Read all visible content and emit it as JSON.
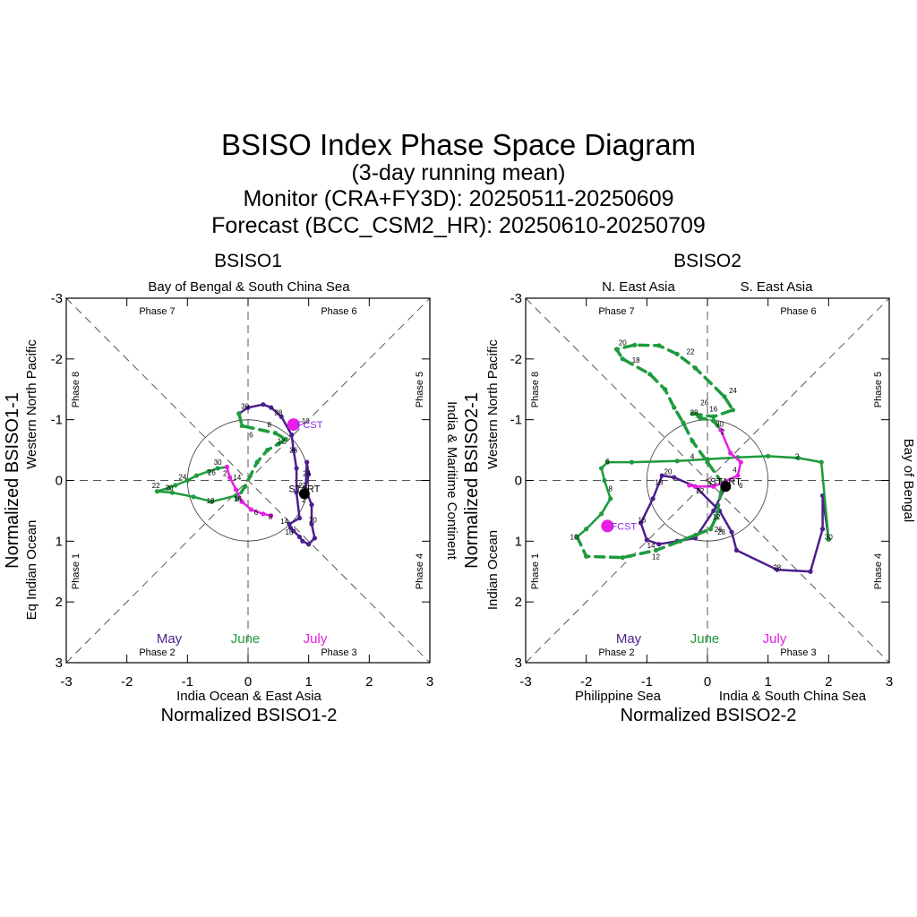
{
  "title": {
    "main": "BSISO Index Phase Space Diagram",
    "line2": "(3-day running mean)",
    "line3": "Monitor (CRA+FY3D): 20250511-20250609",
    "line4": "Forecast (BCC_CSM2_HR): 20250610-20250709"
  },
  "month_labels": [
    {
      "name": "May",
      "color": "#4b1f8c"
    },
    {
      "name": "June",
      "color": "#1e9b3c"
    },
    {
      "name": "July",
      "color": "#e61ee6"
    }
  ],
  "start_label": "START",
  "fcst_label": "FCST",
  "colors": {
    "may": "#4b1f8c",
    "june": "#1e9b3c",
    "july": "#e61ee6",
    "fcst_label": "#8a2be2"
  },
  "chart_data": [
    {
      "type": "scatter",
      "panel_title": "BSISO1",
      "xlabel": "Normalized BSISO1-2",
      "ylabel": "Normalized BSISO1-1",
      "xlim": [
        -3,
        3
      ],
      "ylim": [
        -3,
        3
      ],
      "y_inverted": true,
      "tick_labels": [
        "-3",
        "-2",
        "-1",
        "0",
        "1",
        "2",
        "3"
      ],
      "side_labels": {
        "top": [
          "Bay of Bengal & South China Sea"
        ],
        "bottom": [
          "India Ocean & East Asia"
        ],
        "left": [
          "Western North Pacific",
          "Eq Indian Ocean"
        ],
        "right": [
          "India & Maritime Continent"
        ]
      },
      "phases": [
        "Phase 1",
        "Phase 2",
        "Phase 3",
        "Phase 4",
        "Phase 5",
        "Phase 6",
        "Phase 7",
        "Phase 8"
      ],
      "series": [
        {
          "name": "May",
          "segments": [
            {
              "style": "solid",
              "points": [
                [
                  0.93,
                  0.22
                ],
                [
                  1.0,
                  -0.1
                ],
                [
                  0.97,
                  -0.3
                ],
                [
                  0.95,
                  0.15
                ],
                [
                  1.05,
                  0.4
                ],
                [
                  1.05,
                  0.72
                ],
                [
                  1.1,
                  0.95
                ],
                [
                  1.0,
                  1.05
                ],
                [
                  0.9,
                  1.0
                ],
                [
                  0.85,
                  0.93
                ],
                [
                  0.75,
                  0.83
                ],
                [
                  0.7,
                  0.78
                ],
                [
                  0.68,
                  0.72
                ],
                [
                  0.85,
                  0.62
                ],
                [
                  0.8,
                  0.2
                ],
                [
                  0.8,
                  -0.2
                ],
                [
                  0.75,
                  -0.5
                ],
                [
                  0.72,
                  -0.75
                ],
                [
                  0.55,
                  -1.05
                ],
                [
                  0.38,
                  -1.2
                ],
                [
                  0.25,
                  -1.25
                ],
                [
                  0.0,
                  -1.2
                ],
                [
                  -0.15,
                  -1.1
                ]
              ]
            }
          ]
        },
        {
          "name": "June",
          "segments": [
            {
              "style": "dashed",
              "points": [
                [
                  -0.15,
                  -1.1
                ],
                [
                  -0.1,
                  -0.9
                ],
                [
                  0.45,
                  -0.78
                ],
                [
                  0.62,
                  -0.68
                ],
                [
                  0.5,
                  -0.6
                ],
                [
                  0.32,
                  -0.5
                ],
                [
                  0.15,
                  -0.3
                ],
                [
                  -0.05,
                  0.1
                ],
                [
                  -0.18,
                  0.3
                ],
                [
                  -0.2,
                  0.25
                ]
              ]
            },
            {
              "style": "solid",
              "points": [
                [
                  -0.2,
                  0.25
                ],
                [
                  -0.6,
                  0.35
                ],
                [
                  -0.9,
                  0.27
                ],
                [
                  -1.25,
                  0.2
                ],
                [
                  -1.5,
                  0.18
                ],
                [
                  -1.3,
                  0.12
                ],
                [
                  -1.2,
                  0.08
                ],
                [
                  -1.0,
                  0.0
                ],
                [
                  -0.85,
                  -0.08
                ],
                [
                  -0.65,
                  -0.15
                ],
                [
                  -0.5,
                  -0.2
                ],
                [
                  -0.35,
                  -0.22
                ]
              ]
            }
          ]
        },
        {
          "name": "July",
          "segments": [
            {
              "style": "solid",
              "points": [
                [
                  -0.35,
                  -0.22
                ],
                [
                  -0.3,
                  -0.05
                ],
                [
                  -0.2,
                  0.15
                ],
                [
                  -0.1,
                  0.35
                ],
                [
                  0.05,
                  0.48
                ],
                [
                  0.25,
                  0.55
                ],
                [
                  0.38,
                  0.58
                ]
              ]
            }
          ]
        }
      ],
      "day_labels": [
        {
          "text": "28",
          "x": 0.5,
          "y": -1.12
        },
        {
          "text": "30",
          "x": -0.05,
          "y": -1.22
        },
        {
          "text": "8",
          "x": 0.35,
          "y": -0.92
        },
        {
          "text": "6",
          "x": 0.05,
          "y": -0.75
        },
        {
          "text": "10",
          "x": 0.95,
          "y": -0.98
        },
        {
          "text": "12",
          "x": 0.55,
          "y": -0.65
        },
        {
          "text": "26",
          "x": 0.75,
          "y": -0.5
        },
        {
          "text": "24",
          "x": 0.97,
          "y": -0.12
        },
        {
          "text": "22",
          "x": 0.9,
          "y": 0.08
        },
        {
          "text": "2",
          "x": 0.92,
          "y": 0.32
        },
        {
          "text": "20",
          "x": 1.07,
          "y": 0.65
        },
        {
          "text": "14",
          "x": 0.6,
          "y": 0.67
        },
        {
          "text": "16",
          "x": 0.68,
          "y": 0.85
        },
        {
          "text": "14",
          "x": -0.18,
          "y": -0.05
        },
        {
          "text": "16",
          "x": -0.17,
          "y": 0.3
        },
        {
          "text": "18",
          "x": -0.62,
          "y": 0.33
        },
        {
          "text": "20",
          "x": -1.3,
          "y": 0.12
        },
        {
          "text": "22",
          "x": -1.52,
          "y": 0.08
        },
        {
          "text": "24",
          "x": -1.08,
          "y": -0.06
        },
        {
          "text": "26",
          "x": -0.6,
          "y": -0.13
        },
        {
          "text": "30",
          "x": -0.5,
          "y": -0.3
        },
        {
          "text": "2",
          "x": -0.38,
          "y": -0.12
        },
        {
          "text": "6",
          "x": 0.13,
          "y": 0.52
        },
        {
          "text": "8",
          "x": 0.37,
          "y": 0.6
        }
      ],
      "start": [
        0.93,
        0.22
      ],
      "fcst_end": [
        0.75,
        -0.92
      ]
    },
    {
      "type": "scatter",
      "panel_title": "BSISO2",
      "xlabel": "Normalized BSISO2-2",
      "ylabel": "Normalized BSISO2-1",
      "xlim": [
        -3,
        3
      ],
      "ylim": [
        -3,
        3
      ],
      "y_inverted": true,
      "tick_labels": [
        "-3",
        "-2",
        "-1",
        "0",
        "1",
        "2",
        "3"
      ],
      "side_labels": {
        "top": [
          "N. East Asia",
          "S. East Asia"
        ],
        "bottom": [
          "Philippine Sea",
          "India & South China Sea"
        ],
        "left": [
          "Western North Pacific",
          "Indian Ocean"
        ],
        "right": [
          "Bay of Bengal"
        ]
      },
      "phases": [
        "Phase 1",
        "Phase 2",
        "Phase 3",
        "Phase 4",
        "Phase 5",
        "Phase 6",
        "Phase 7",
        "Phase 8"
      ],
      "series": [
        {
          "name": "May",
          "segments": [
            {
              "style": "solid",
              "points": [
                [
                  0.3,
                  0.1
                ],
                [
                  0.1,
                  0.5
                ],
                [
                  -0.2,
                  0.95
                ],
                [
                  -0.5,
                  1.0
                ],
                [
                  -0.8,
                  1.05
                ],
                [
                  -1.0,
                  0.98
                ],
                [
                  -1.1,
                  0.7
                ],
                [
                  -0.9,
                  0.3
                ],
                [
                  -0.75,
                  -0.08
                ],
                [
                  -0.55,
                  -0.05
                ],
                [
                  -0.2,
                  0.1
                ],
                [
                  0.2,
                  0.5
                ],
                [
                  0.4,
                  0.85
                ],
                [
                  0.48,
                  1.15
                ],
                [
                  1.15,
                  1.47
                ],
                [
                  1.7,
                  1.5
                ],
                [
                  1.9,
                  0.8
                ],
                [
                  1.9,
                  0.25
                ],
                [
                  2.0,
                  0.97
                ]
              ]
            }
          ]
        },
        {
          "name": "June",
          "segments": [
            {
              "style": "solid",
              "points": [
                [
                  2.0,
                  0.97
                ],
                [
                  1.88,
                  -0.3
                ],
                [
                  1.5,
                  -0.37
                ],
                [
                  1.0,
                  -0.4
                ],
                [
                  0.5,
                  -0.38
                ],
                [
                  0.0,
                  -0.35
                ],
                [
                  -0.5,
                  -0.32
                ],
                [
                  -1.25,
                  -0.3
                ],
                [
                  -1.65,
                  -0.3
                ],
                [
                  -1.75,
                  -0.2
                ],
                [
                  -1.7,
                  0.0
                ],
                [
                  -1.6,
                  0.3
                ],
                [
                  -1.75,
                  0.55
                ],
                [
                  -2.0,
                  0.8
                ],
                [
                  -2.15,
                  0.93
                ]
              ]
            },
            {
              "style": "dashed",
              "points": [
                [
                  -2.15,
                  0.93
                ],
                [
                  -2.0,
                  1.25
                ],
                [
                  -1.4,
                  1.27
                ],
                [
                  -0.85,
                  1.15
                ],
                [
                  -0.45,
                  1.0
                ],
                [
                  -0.2,
                  0.9
                ],
                [
                  0.05,
                  0.8
                ],
                [
                  0.15,
                  0.6
                ],
                [
                  0.25,
                  0.05
                ],
                [
                  0.0,
                  -0.3
                ],
                [
                  -0.25,
                  -0.65
                ],
                [
                  -0.4,
                  -0.95
                ],
                [
                  -0.55,
                  -1.2
                ],
                [
                  -0.7,
                  -1.5
                ],
                [
                  -0.95,
                  -1.75
                ],
                [
                  -1.4,
                  -2.0
                ],
                [
                  -1.5,
                  -2.16
                ],
                [
                  -1.2,
                  -2.23
                ],
                [
                  -0.8,
                  -2.22
                ],
                [
                  -0.5,
                  -2.08
                ],
                [
                  -0.2,
                  -1.85
                ],
                [
                  0.28,
                  -1.38
                ],
                [
                  0.42,
                  -1.16
                ],
                [
                  0.1,
                  -1.05
                ],
                [
                  -0.25,
                  -1.1
                ],
                [
                  -0.12,
                  -1.03
                ],
                [
                  0.1,
                  -0.98
                ],
                [
                  0.22,
                  -0.83
                ]
              ]
            }
          ]
        },
        {
          "name": "July",
          "segments": [
            {
              "style": "solid",
              "points": [
                [
                  0.22,
                  -0.83
                ],
                [
                  0.38,
                  -0.45
                ],
                [
                  0.55,
                  -0.3
                ],
                [
                  0.5,
                  -0.08
                ],
                [
                  0.1,
                  0.1
                ],
                [
                  -0.2,
                  0.1
                ],
                [
                  -0.3,
                  0.08
                ]
              ]
            }
          ]
        }
      ],
      "day_labels": [
        {
          "text": "20",
          "x": -1.4,
          "y": -2.27
        },
        {
          "text": "18",
          "x": -1.18,
          "y": -1.98
        },
        {
          "text": "22",
          "x": -0.28,
          "y": -2.12
        },
        {
          "text": "24",
          "x": 0.42,
          "y": -1.48
        },
        {
          "text": "26",
          "x": -0.05,
          "y": -1.28
        },
        {
          "text": "28",
          "x": -0.22,
          "y": -1.12
        },
        {
          "text": "16",
          "x": 0.1,
          "y": -1.18
        },
        {
          "text": "30",
          "x": 0.2,
          "y": -0.93
        },
        {
          "text": "2",
          "x": 0.25,
          "y": -0.8
        },
        {
          "text": "4",
          "x": -0.25,
          "y": -0.4
        },
        {
          "text": "2",
          "x": 1.48,
          "y": -0.4
        },
        {
          "text": "4",
          "x": 0.45,
          "y": -0.18
        },
        {
          "text": "6",
          "x": -1.65,
          "y": -0.32
        },
        {
          "text": "8",
          "x": -1.6,
          "y": 0.13
        },
        {
          "text": "8",
          "x": 0.03,
          "y": 0.05
        },
        {
          "text": "6",
          "x": 0.55,
          "y": 0.08
        },
        {
          "text": "20",
          "x": -0.65,
          "y": -0.15
        },
        {
          "text": "18",
          "x": -0.8,
          "y": 0.03
        },
        {
          "text": "22",
          "x": -0.12,
          "y": 0.17
        },
        {
          "text": "12",
          "x": 0.15,
          "y": 0.6
        },
        {
          "text": "26",
          "x": 0.18,
          "y": 0.8
        },
        {
          "text": "28",
          "x": 0.23,
          "y": 0.85
        },
        {
          "text": "16",
          "x": -1.08,
          "y": 0.65
        },
        {
          "text": "14",
          "x": -0.93,
          "y": 1.07
        },
        {
          "text": "12",
          "x": -0.85,
          "y": 1.25
        },
        {
          "text": "10",
          "x": -2.2,
          "y": 0.93
        },
        {
          "text": "30",
          "x": 2.0,
          "y": 0.93
        },
        {
          "text": "28",
          "x": 1.15,
          "y": 1.43
        }
      ],
      "start": [
        0.3,
        0.1
      ],
      "fcst_end": [
        -1.65,
        0.75
      ]
    }
  ]
}
